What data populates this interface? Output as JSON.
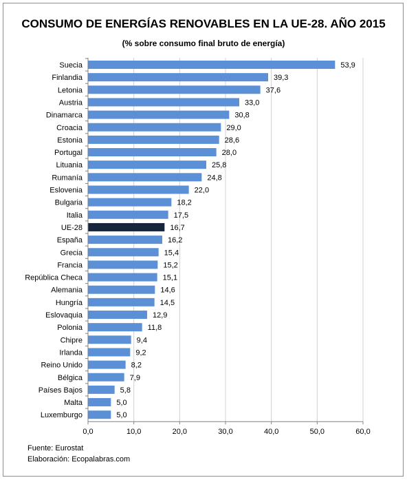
{
  "chart_data": {
    "type": "bar",
    "orientation": "horizontal",
    "title": "CONSUMO DE ENERGÍAS RENOVABLES EN LA UE-28. AÑO 2015",
    "subtitle": "(% sobre consumo final bruto de energía)",
    "xlabel": "",
    "ylabel": "",
    "xlim": [
      0,
      60
    ],
    "x_ticks": [
      "0,0",
      "10,0",
      "20,0",
      "30,0",
      "40,0",
      "50,0",
      "60,0"
    ],
    "grid": true,
    "legend": "none",
    "categories": [
      "Suecia",
      "Finlandia",
      "Letonia",
      "Austria",
      "Dinamarca",
      "Croacia",
      "Estonia",
      "Portugal",
      "Lituania",
      "Rumanía",
      "Eslovenia",
      "Bulgaria",
      "Italia",
      "UE-28",
      "España",
      "Grecia",
      "Francia",
      "República Checa",
      "Alemania",
      "Hungría",
      "Eslovaquia",
      "Polonia",
      "Chipre",
      "Irlanda",
      "Reino Unido",
      "Bélgica",
      "Países Bajos",
      "Malta",
      "Luxemburgo"
    ],
    "values": [
      53.9,
      39.3,
      37.6,
      33.0,
      30.8,
      29.0,
      28.6,
      28.0,
      25.8,
      24.8,
      22.0,
      18.2,
      17.5,
      16.7,
      16.2,
      15.4,
      15.2,
      15.1,
      14.6,
      14.5,
      12.9,
      11.8,
      9.4,
      9.2,
      8.2,
      7.9,
      5.8,
      5.0,
      5.0
    ],
    "value_labels": [
      "53,9",
      "39,3",
      "37,6",
      "33,0",
      "30,8",
      "29,0",
      "28,6",
      "28,0",
      "25,8",
      "24,8",
      "22,0",
      "18,2",
      "17,5",
      "16,7",
      "16,2",
      "15,4",
      "15,2",
      "15,1",
      "14,6",
      "14,5",
      "12,9",
      "11,8",
      "9,4",
      "9,2",
      "8,2",
      "7,9",
      "5,8",
      "5,0",
      "5,0"
    ],
    "highlight_category": "UE-28",
    "colors": {
      "bar": "#5b8fd6",
      "highlight": "#17263d",
      "grid": "#d0d0d0",
      "axis": "#808080"
    }
  },
  "footer": {
    "source": "Fuente: Eurostat",
    "credit": "Elaboración: Ecopalabras.com"
  }
}
